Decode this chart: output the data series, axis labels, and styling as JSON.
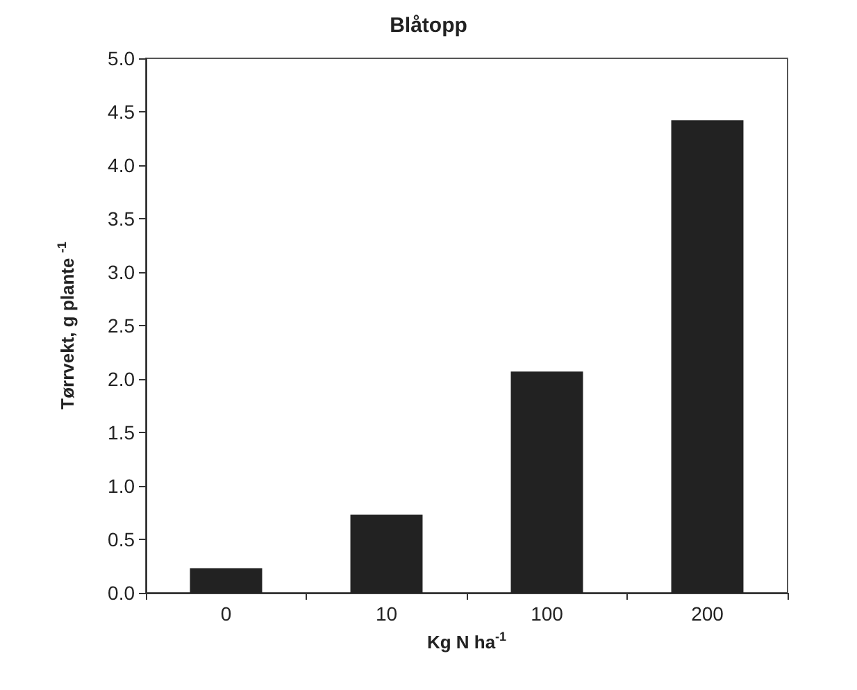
{
  "chart_data": {
    "type": "bar",
    "title": "Blåtopp",
    "xlabel": "Kg N ha$^{-1}$",
    "ylabel": "Tørrvekt, g plante $^{-1}$",
    "categories": [
      "0",
      "10",
      "100",
      "200"
    ],
    "values": [
      0.23,
      0.73,
      2.07,
      4.42
    ],
    "color": "#222222",
    "ylim": [
      0,
      5
    ],
    "yticks": [
      {
        "value": 0,
        "label": "0.0"
      },
      0.5,
      {
        "value": 1,
        "label": "1.0"
      },
      1.5,
      {
        "value": 2,
        "label": "2.0"
      },
      2.5,
      {
        "value": 3,
        "label": "3.0"
      },
      3.5,
      {
        "value": 4,
        "label": "4.0"
      },
      4.5,
      {
        "value": 5,
        "label": "5.0"
      }
    ],
    "grid": false
  }
}
